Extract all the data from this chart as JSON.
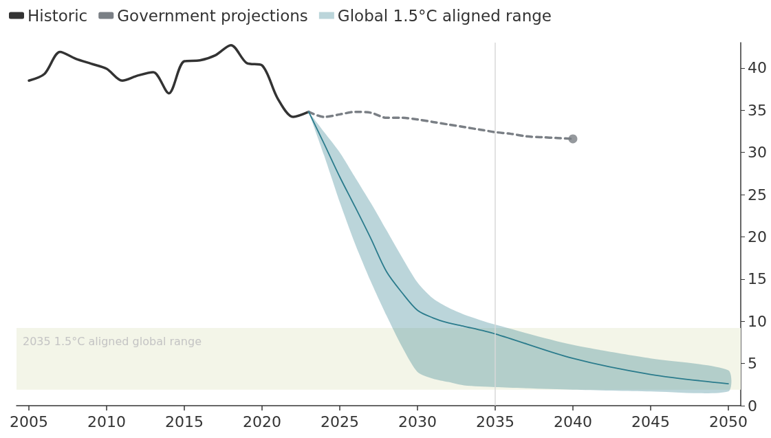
{
  "chart_data": {
    "type": "line",
    "legend": "top left",
    "grid": false,
    "xlim": [
      2004.2,
      2050.8
    ],
    "xticks": [
      2005,
      2010,
      2015,
      2020,
      2025,
      2030,
      2035,
      2040,
      2045,
      2050
    ],
    "ylim": [
      0,
      43
    ],
    "yticks": [
      0,
      5,
      10,
      15,
      20,
      25,
      30,
      35,
      40
    ],
    "series": [
      {
        "name": "Historic",
        "color": "#333333",
        "x": [
          2005,
          2006,
          2007,
          2008,
          2009,
          2010,
          2011,
          2012,
          2013,
          2014,
          2015,
          2016,
          2017,
          2018,
          2019,
          2020,
          2021,
          2022,
          2023
        ],
        "values": [
          38.5,
          39.3,
          41.9,
          41.1,
          40.5,
          39.9,
          38.5,
          39.1,
          39.5,
          37.0,
          40.8,
          40.9,
          41.5,
          42.7,
          40.6,
          40.3,
          36.4,
          34.2,
          34.8
        ]
      },
      {
        "name": "Government projections",
        "color": "#7a7f85",
        "line_style": "dashed",
        "x": [
          2023,
          2024,
          2025,
          2026,
          2027,
          2028,
          2029,
          2030,
          2031,
          2032,
          2033,
          2034,
          2035,
          2036,
          2037,
          2038,
          2039,
          2040
        ],
        "values": [
          34.8,
          34.2,
          34.5,
          34.8,
          34.7,
          34.1,
          34.1,
          33.9,
          33.6,
          33.3,
          33.0,
          32.7,
          32.4,
          32.2,
          31.9,
          31.8,
          31.7,
          31.6
        ]
      },
      {
        "type": "scatter",
        "color": "#7a7f85",
        "marker": "circle",
        "x": [
          2040
        ],
        "values": [
          31.6
        ]
      },
      {
        "name": "Global 1.5°C aligned range",
        "color": "#2a7b8c",
        "x": [
          2023,
          2024,
          2025,
          2026,
          2027,
          2028,
          2029,
          2030,
          2031,
          2032,
          2033,
          2035,
          2040,
          2045,
          2050
        ],
        "values": [
          34.8,
          31.0,
          27.1,
          23.5,
          19.8,
          15.9,
          13.4,
          11.3,
          10.4,
          9.8,
          9.4,
          8.5,
          5.6,
          3.7,
          2.6
        ],
        "lower": [
          34.8,
          29.6,
          24.1,
          19.1,
          14.7,
          10.7,
          7.0,
          4.0,
          3.2,
          2.8,
          2.4,
          2.2,
          1.9,
          1.7,
          1.7
        ],
        "upper": [
          34.8,
          32.4,
          30.0,
          27.0,
          24.0,
          20.8,
          17.6,
          14.6,
          12.7,
          11.6,
          10.8,
          9.6,
          7.2,
          5.6,
          4.2
        ]
      }
    ],
    "bands": [
      {
        "axis": "y",
        "from": 1.9,
        "to": 9.2,
        "label": "2035 1.5°C aligned global range",
        "color": "#f3f5e8"
      }
    ],
    "ref_lines": [
      {
        "axis": "x",
        "value": 2035,
        "color": "#d9d9d9"
      }
    ]
  }
}
